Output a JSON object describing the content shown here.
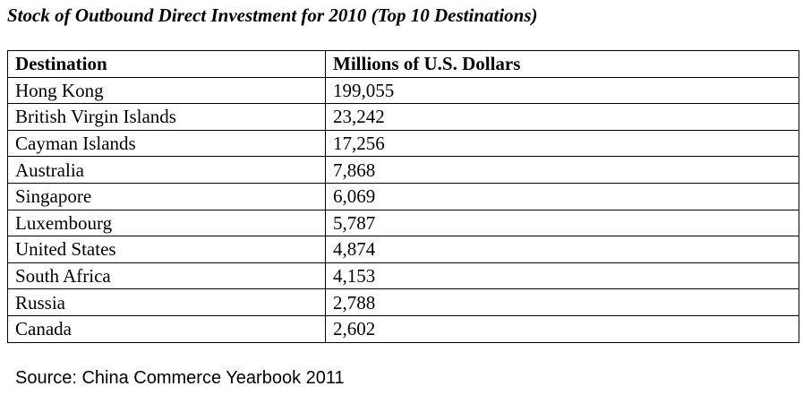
{
  "title": "Stock of Outbound Direct Investment for 2010 (Top 10 Destinations)",
  "table": {
    "headers": [
      "Destination",
      "Millions of U.S. Dollars"
    ],
    "rows": [
      [
        "Hong Kong",
        "199,055"
      ],
      [
        "British Virgin Islands",
        "23,242"
      ],
      [
        "Cayman Islands",
        "17,256"
      ],
      [
        "Australia",
        "7,868"
      ],
      [
        "Singapore",
        "6,069"
      ],
      [
        "Luxembourg",
        "5,787"
      ],
      [
        "United States",
        "4,874"
      ],
      [
        "South Africa",
        "4,153"
      ],
      [
        "Russia",
        "2,788"
      ],
      [
        "Canada",
        "2,602"
      ]
    ]
  },
  "source": "Source: China Commerce Yearbook 2011"
}
